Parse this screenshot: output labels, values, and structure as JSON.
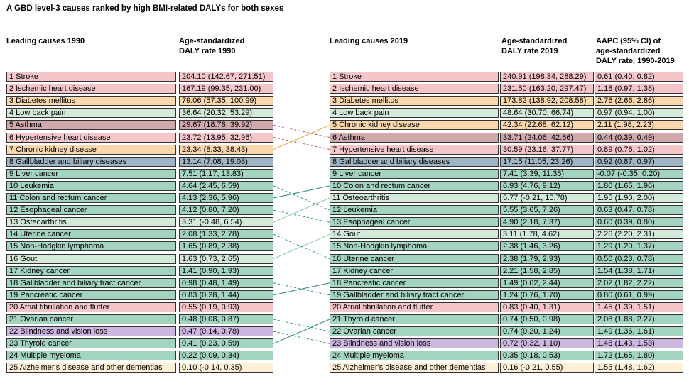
{
  "title": "A GBD level-3 causes ranked by high BMI-related DALYs for both sexes",
  "headers": {
    "c1990": "Leading causes 1990",
    "r1990_l1": "Age-standardized",
    "r1990_l2": "DALY rate 1990",
    "c2019": "Leading causes 2019",
    "r2019_l1": "Age-standardized",
    "r2019_l2": "DALY rate 2019",
    "aapc_l1": "AAPC (95% CI) of",
    "aapc_l2": "age-standardized",
    "aapc_l3": "DALY rate, 1990-2019"
  },
  "colors": {
    "pink": "#f5c6c9",
    "orange": "#fad7ad",
    "lightgreen": "#d4ead8",
    "mauve": "#cfa9ab",
    "bluegray": "#9fb4c4",
    "teal": "#a3d4bf",
    "purple": "#cdb6df",
    "cream": "#fdf0d7",
    "line_red": "#c0505a",
    "line_orange": "#f0a030",
    "line_teal": "#2e8b7a",
    "line_green": "#8fd0a0"
  },
  "chart_data": {
    "type": "table",
    "title": "A GBD level-3 causes ranked by high BMI-related DALYs for both sexes",
    "rows_1990": [
      {
        "label": "1 Stroke",
        "value": "204.10 (142.67, 271.51)",
        "color": "pink"
      },
      {
        "label": "2 Ischemic heart disease",
        "value": "167.19 (99.35, 231.00)",
        "color": "pink"
      },
      {
        "label": "3 Diabetes mellitus",
        "value": "79.06 (57.35, 100.99)",
        "color": "orange"
      },
      {
        "label": "4 Low back pain",
        "value": "36.64 (20.32, 53.29)",
        "color": "lightgreen"
      },
      {
        "label": "5 Asthma",
        "value": "29.67 (18.78, 39.92)",
        "color": "mauve"
      },
      {
        "label": "6 Hypertensive heart disease",
        "value": "23.72 (13.95, 32.96)",
        "color": "pink"
      },
      {
        "label": "7 Chronic kidney disease",
        "value": "23.34 (8.33, 38.43)",
        "color": "orange"
      },
      {
        "label": "8 Gallbladder and biliary diseases",
        "value": "13.14 (7.08, 19.08)",
        "color": "bluegray"
      },
      {
        "label": "9 Liver cancer",
        "value": "7.51 (1.17, 13.83)",
        "color": "teal"
      },
      {
        "label": "10 Leukemia",
        "value": "4.64 (2.45, 6.59)",
        "color": "teal"
      },
      {
        "label": "11 Colon and rectum cancer",
        "value": "4.13 (2.36, 5.96)",
        "color": "teal"
      },
      {
        "label": "12 Esophageal cancer",
        "value": "4.12 (0.80, 7.20)",
        "color": "teal"
      },
      {
        "label": "13 Osteoarthritis",
        "value": "3.31 (-0.48, 6.54)",
        "color": "lightgreen"
      },
      {
        "label": "14 Uterine cancer",
        "value": "2.08 (1.33, 2.78)",
        "color": "teal"
      },
      {
        "label": "15 Non-Hodgkin lymphoma",
        "value": "1.65 (0.89, 2.38)",
        "color": "teal"
      },
      {
        "label": "16 Gout",
        "value": "1.63 (0.73, 2.65)",
        "color": "lightgreen"
      },
      {
        "label": "17 Kidney cancer",
        "value": "1.41 (0.90, 1.93)",
        "color": "teal"
      },
      {
        "label": "18 Gallbladder and biliary tract cancer",
        "value": "0.98 (0.48, 1.49)",
        "color": "teal"
      },
      {
        "label": "19 Pancreatic cancer",
        "value": "0.83 (0.28, 1.44)",
        "color": "teal"
      },
      {
        "label": "20 Atrial fibrillation and flutter",
        "value": "0.55 (0.19, 0.93)",
        "color": "pink"
      },
      {
        "label": "21 Ovarian cancer",
        "value": "0.48 (0.08, 0.87)",
        "color": "teal"
      },
      {
        "label": "22 Blindness and vision loss",
        "value": "0.47 (0.14, 0.78)",
        "color": "purple"
      },
      {
        "label": "23 Thyroid cancer",
        "value": "0.41 (0.23, 0.59)",
        "color": "teal"
      },
      {
        "label": "24 Multiple myeloma",
        "value": "0.22 (0.09, 0.34)",
        "color": "teal"
      },
      {
        "label": "25 Alzheimer's disease and other dementias",
        "value": "0.10 (-0.14, 0.35)",
        "color": "cream"
      }
    ],
    "rows_2019": [
      {
        "label": "1 Stroke",
        "value": "240.91 (198.34, 288.29)",
        "aapc": "0.61 (0.40, 0.82)",
        "color": "pink",
        "from": 1
      },
      {
        "label": "2 Ischemic heart disease",
        "value": "231.50 (163.20, 297.47)",
        "aapc": "1.18 (0.97, 1.38)",
        "color": "pink",
        "from": 2
      },
      {
        "label": "3 Diabetes mellitus",
        "value": "173.82 (138.92, 208.58)",
        "aapc": "2.76 (2.66, 2.86)",
        "color": "orange",
        "from": 3
      },
      {
        "label": "4 Low back pain",
        "value": "48.64 (30.70, 66.74)",
        "aapc": "0.97 (0.94, 1.00)",
        "color": "lightgreen",
        "from": 4
      },
      {
        "label": "5 Chronic kidney disease",
        "value": "42.34 (22.68, 62.12)",
        "aapc": "2.11 (1.98, 2.23)",
        "color": "orange",
        "from": 7
      },
      {
        "label": "6 Asthma",
        "value": "33.71 (24.06, 42.66)",
        "aapc": "0.44 (0.39, 0.49)",
        "color": "mauve",
        "from": 5
      },
      {
        "label": "7 Hypertensive heart disease",
        "value": "30.59 (23.16, 37.77)",
        "aapc": "0.89 (0.76, 1.02)",
        "color": "pink",
        "from": 6
      },
      {
        "label": "8 Gallbladder and biliary diseases",
        "value": "17.15 (11.05, 23.26)",
        "aapc": "0.92 (0.87, 0.97)",
        "color": "bluegray",
        "from": 8
      },
      {
        "label": "9 Liver cancer",
        "value": "7.41 (3.39, 11.36)",
        "aapc": "-0.07 (-0.35, 0.20)",
        "color": "teal",
        "from": 9
      },
      {
        "label": "10 Colon and rectum cancer",
        "value": "6.93 (4.76, 9.12)",
        "aapc": "1.80 (1.65, 1.96)",
        "color": "teal",
        "from": 11
      },
      {
        "label": "11 Osteoarthritis",
        "value": "5.77 (-0.21, 10.78)",
        "aapc": "1.95 (1.90, 2.00)",
        "color": "lightgreen",
        "from": 13
      },
      {
        "label": "12 Leukemia",
        "value": "5.55 (3.65, 7.26)",
        "aapc": "0.63 (0.47, 0.78)",
        "color": "teal",
        "from": 10
      },
      {
        "label": "13 Esophageal cancer",
        "value": "4.90 (2.18, 7.37)",
        "aapc": "0.60 (0.39, 0.80)",
        "color": "teal",
        "from": 12
      },
      {
        "label": "14 Gout",
        "value": "3.11 (1.78, 4.62)",
        "aapc": "2.26 (2.20, 2.31)",
        "color": "lightgreen",
        "from": 16
      },
      {
        "label": "15 Non-Hodgkin lymphoma",
        "value": "2.38 (1.46, 3.26)",
        "aapc": "1.29 (1.20, 1.37)",
        "color": "teal",
        "from": 15
      },
      {
        "label": "16 Uterine cancer",
        "value": "2.38 (1.79, 2.93)",
        "aapc": "0.50 (0.23, 0.78)",
        "color": "teal",
        "from": 14
      },
      {
        "label": "17 Kidney cancer",
        "value": "2.21 (1.58, 2.85)",
        "aapc": "1.54 (1.38, 1.71)",
        "color": "teal",
        "from": 17
      },
      {
        "label": "18 Pancreatic cancer",
        "value": "1.49 (0.62, 2.44)",
        "aapc": "2.02 (1.82, 2.22)",
        "color": "teal",
        "from": 19
      },
      {
        "label": "19 Gallbladder and biliary tract cancer",
        "value": "1.24 (0.76, 1.70)",
        "aapc": "0.80 (0.61, 0.99)",
        "color": "teal",
        "from": 18
      },
      {
        "label": "20 Atrial fibrillation and flutter",
        "value": "0.83 (0.40, 1.31)",
        "aapc": "1.45 (1.39, 1.51)",
        "color": "pink",
        "from": 20
      },
      {
        "label": "21 Thyroid cancer",
        "value": "0.74 (0.50, 0.98)",
        "aapc": "2.08 (1.88, 2.27)",
        "color": "teal",
        "from": 23
      },
      {
        "label": "22 Ovarian cancer",
        "value": "0.74 (0.20, 1.24)",
        "aapc": "1.49 (1.36, 1.61)",
        "color": "teal",
        "from": 21
      },
      {
        "label": "23 Blindness and vision loss",
        "value": "0.72 (0.32, 1.10)",
        "aapc": "1.48 (1.43, 1.53)",
        "color": "purple",
        "from": 22
      },
      {
        "label": "24 Multiple myeloma",
        "value": "0.35 (0.18, 0.53)",
        "aapc": "1.72 (1.65, 1.80)",
        "color": "teal",
        "from": 24
      },
      {
        "label": "25 Alzheimer's disease and other dementias",
        "value": "0.16 (-0.21, 0.55)",
        "aapc": "1.55 (1.48, 1.62)",
        "color": "cream",
        "from": 25
      }
    ]
  }
}
